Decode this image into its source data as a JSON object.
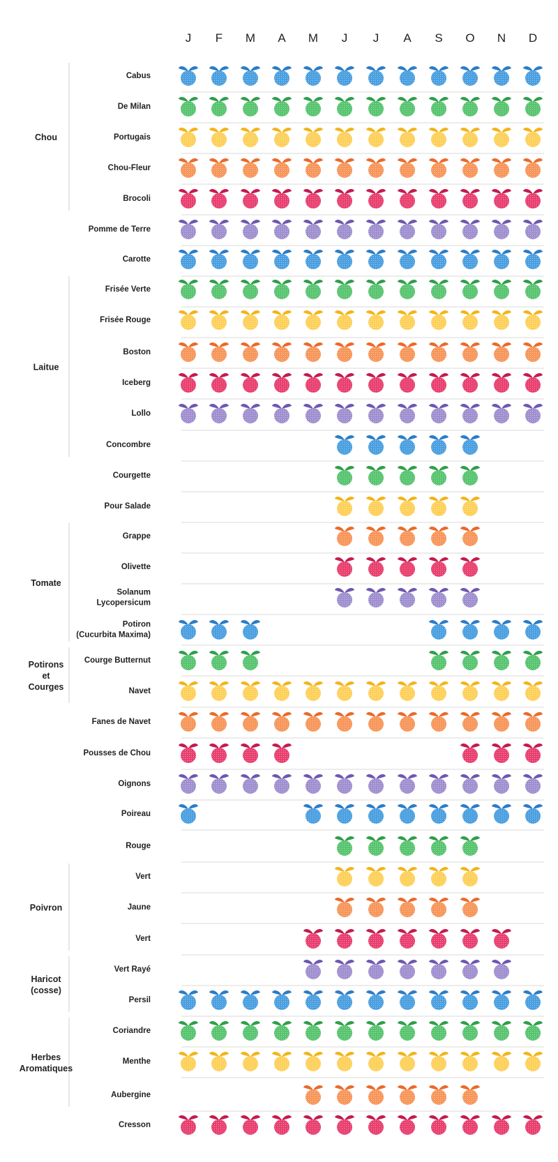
{
  "chart_data": {
    "type": "table",
    "months": [
      "J",
      "F",
      "M",
      "A",
      "M",
      "J",
      "J",
      "A",
      "S",
      "O",
      "N",
      "D"
    ],
    "colors": {
      "blue": {
        "body": "#4a9fe0",
        "leaf": "#2b7cc7"
      },
      "green": {
        "body": "#58c46f",
        "leaf": "#2f9e4a"
      },
      "yellow": {
        "body": "#fdd05a",
        "leaf": "#f2b417"
      },
      "orange": {
        "body": "#f7965a",
        "leaf": "#ea6a2a"
      },
      "red": {
        "body": "#e83f6f",
        "leaf": "#c51a4e"
      },
      "purple": {
        "body": "#9f8fcf",
        "leaf": "#6e57b0"
      }
    },
    "icon": "fruit-dot-icon",
    "groups": [
      {
        "name": "Chou",
        "rows": [
          0,
          4
        ]
      },
      {
        "name": "Laitue",
        "rows": [
          7,
          12
        ]
      },
      {
        "name": "Tomate",
        "rows": [
          15,
          18
        ]
      },
      {
        "name": "Potirons et Courges",
        "lines": [
          "Potirons",
          "et",
          "Courges"
        ],
        "rows": [
          19,
          20
        ]
      },
      {
        "name": "Poivron",
        "rows": [
          26,
          28
        ]
      },
      {
        "name": "Haricot (cosse)",
        "lines": [
          "Haricot",
          "(cosse)"
        ],
        "rows": [
          29,
          30
        ]
      },
      {
        "name": "Herbes Aromatiques",
        "lines": [
          "Herbes",
          "Aromatiques"
        ],
        "rows": [
          31,
          33
        ]
      }
    ],
    "rows": [
      {
        "label": "Cabus",
        "color": "blue",
        "months": [
          1,
          1,
          1,
          1,
          1,
          1,
          1,
          1,
          1,
          1,
          1,
          1
        ]
      },
      {
        "label": "De Milan",
        "color": "green",
        "months": [
          1,
          1,
          1,
          1,
          1,
          1,
          1,
          1,
          1,
          1,
          1,
          1
        ]
      },
      {
        "label": "Portugais",
        "color": "yellow",
        "months": [
          1,
          1,
          1,
          1,
          1,
          1,
          1,
          1,
          1,
          1,
          1,
          1
        ]
      },
      {
        "label": "Chou-Fleur",
        "color": "orange",
        "months": [
          1,
          1,
          1,
          1,
          1,
          1,
          1,
          1,
          1,
          1,
          1,
          1
        ]
      },
      {
        "label": "Brocoli",
        "color": "red",
        "months": [
          1,
          1,
          1,
          1,
          1,
          1,
          1,
          1,
          1,
          1,
          1,
          1
        ]
      },
      {
        "label": "Pomme de Terre",
        "color": "purple",
        "months": [
          1,
          1,
          1,
          1,
          1,
          1,
          1,
          1,
          1,
          1,
          1,
          1
        ]
      },
      {
        "label": "Carotte",
        "color": "blue",
        "months": [
          1,
          1,
          1,
          1,
          1,
          1,
          1,
          1,
          1,
          1,
          1,
          1
        ]
      },
      {
        "label": "Frisée Verte",
        "color": "green",
        "months": [
          1,
          1,
          1,
          1,
          1,
          1,
          1,
          1,
          1,
          1,
          1,
          1
        ]
      },
      {
        "label": "Frisée Rouge",
        "color": "yellow",
        "months": [
          1,
          1,
          1,
          1,
          1,
          1,
          1,
          1,
          1,
          1,
          1,
          1
        ]
      },
      {
        "label": "Boston",
        "color": "orange",
        "months": [
          1,
          1,
          1,
          1,
          1,
          1,
          1,
          1,
          1,
          1,
          1,
          1
        ]
      },
      {
        "label": "Iceberg",
        "color": "red",
        "months": [
          1,
          1,
          1,
          1,
          1,
          1,
          1,
          1,
          1,
          1,
          1,
          1
        ]
      },
      {
        "label": "Lollo",
        "color": "purple",
        "months": [
          1,
          1,
          1,
          1,
          1,
          1,
          1,
          1,
          1,
          1,
          1,
          1
        ]
      },
      {
        "label": "Concombre",
        "color": "blue",
        "months": [
          0,
          0,
          0,
          0,
          0,
          1,
          1,
          1,
          1,
          1,
          0,
          0
        ]
      },
      {
        "label": "Courgette",
        "color": "green",
        "months": [
          0,
          0,
          0,
          0,
          0,
          1,
          1,
          1,
          1,
          1,
          0,
          0
        ]
      },
      {
        "label": "Pour Salade",
        "color": "yellow",
        "months": [
          0,
          0,
          0,
          0,
          0,
          1,
          1,
          1,
          1,
          1,
          0,
          0
        ]
      },
      {
        "label": "Grappe",
        "color": "orange",
        "months": [
          0,
          0,
          0,
          0,
          0,
          1,
          1,
          1,
          1,
          1,
          0,
          0
        ]
      },
      {
        "label": "Olivette",
        "color": "red",
        "months": [
          0,
          0,
          0,
          0,
          0,
          1,
          1,
          1,
          1,
          1,
          0,
          0
        ]
      },
      {
        "label": "Solanum Lycopersicum",
        "lines": [
          "Solanum",
          "Lycopersicum"
        ],
        "color": "purple",
        "months": [
          0,
          0,
          0,
          0,
          0,
          1,
          1,
          1,
          1,
          1,
          0,
          0
        ]
      },
      {
        "label": "Potiron (Cucurbita Maxima)",
        "lines": [
          "Potiron",
          "(Cucurbita Maxima)"
        ],
        "color": "blue",
        "months": [
          1,
          1,
          1,
          0,
          0,
          0,
          0,
          0,
          1,
          1,
          1,
          1
        ]
      },
      {
        "label": "Courge Butternut",
        "color": "green",
        "months": [
          1,
          1,
          1,
          0,
          0,
          0,
          0,
          0,
          1,
          1,
          1,
          1
        ]
      },
      {
        "label": "Navet",
        "color": "yellow",
        "months": [
          1,
          1,
          1,
          1,
          1,
          1,
          1,
          1,
          1,
          1,
          1,
          1
        ]
      },
      {
        "label": "Fanes de Navet",
        "color": "orange",
        "months": [
          1,
          1,
          1,
          1,
          1,
          1,
          1,
          1,
          1,
          1,
          1,
          1
        ]
      },
      {
        "label": "Pousses de Chou",
        "color": "red",
        "months": [
          1,
          1,
          1,
          1,
          0,
          0,
          0,
          0,
          0,
          1,
          1,
          1
        ]
      },
      {
        "label": "Oignons",
        "color": "purple",
        "months": [
          1,
          1,
          1,
          1,
          1,
          1,
          1,
          1,
          1,
          1,
          1,
          1
        ]
      },
      {
        "label": "Poireau",
        "color": "blue",
        "months": [
          1,
          0,
          0,
          0,
          1,
          1,
          1,
          1,
          1,
          1,
          1,
          1
        ]
      },
      {
        "label": "Rouge",
        "color": "green",
        "months": [
          0,
          0,
          0,
          0,
          0,
          1,
          1,
          1,
          1,
          1,
          0,
          0
        ]
      },
      {
        "label": "Vert",
        "color": "yellow",
        "months": [
          0,
          0,
          0,
          0,
          0,
          1,
          1,
          1,
          1,
          1,
          0,
          0
        ]
      },
      {
        "label": "Jaune",
        "color": "orange",
        "months": [
          0,
          0,
          0,
          0,
          0,
          1,
          1,
          1,
          1,
          1,
          0,
          0
        ]
      },
      {
        "label": "Vert",
        "color": "red",
        "months": [
          0,
          0,
          0,
          0,
          1,
          1,
          1,
          1,
          1,
          1,
          1,
          0
        ]
      },
      {
        "label": "Vert Rayé",
        "color": "purple",
        "months": [
          0,
          0,
          0,
          0,
          1,
          1,
          1,
          1,
          1,
          1,
          1,
          0
        ]
      },
      {
        "label": "Persil",
        "color": "blue",
        "months": [
          1,
          1,
          1,
          1,
          1,
          1,
          1,
          1,
          1,
          1,
          1,
          1
        ]
      },
      {
        "label": "Coriandre",
        "color": "green",
        "months": [
          1,
          1,
          1,
          1,
          1,
          1,
          1,
          1,
          1,
          1,
          1,
          1
        ]
      },
      {
        "label": "Menthe",
        "color": "yellow",
        "months": [
          1,
          1,
          1,
          1,
          1,
          1,
          1,
          1,
          1,
          1,
          1,
          1
        ]
      },
      {
        "label": "Aubergine",
        "color": "orange",
        "months": [
          0,
          0,
          0,
          0,
          1,
          1,
          1,
          1,
          1,
          1,
          0,
          0
        ]
      },
      {
        "label": "Cresson",
        "color": "red",
        "months": [
          1,
          1,
          1,
          1,
          1,
          1,
          1,
          1,
          1,
          1,
          1,
          1
        ]
      }
    ]
  }
}
